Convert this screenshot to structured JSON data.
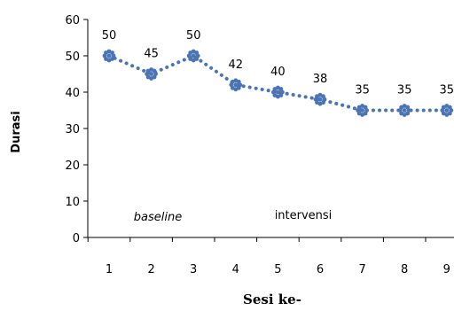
{
  "chart_data": {
    "type": "line",
    "x": [
      1,
      2,
      3,
      4,
      5,
      6,
      7,
      8,
      9
    ],
    "series": [
      {
        "values": [
          50,
          45,
          50,
          42,
          40,
          38,
          35,
          35,
          35
        ]
      }
    ],
    "data_labels": [
      "50",
      "45",
      "50",
      "42",
      "40",
      "38",
      "35",
      "35",
      "35"
    ],
    "xlabel": "Sesi ke-",
    "ylabel": "Durasi",
    "ylim": [
      0,
      60
    ],
    "yticks": [
      0,
      10,
      20,
      30,
      40,
      50,
      60
    ],
    "xtick_labels": [
      "1",
      "2",
      "3",
      "4",
      "5",
      "6",
      "7",
      "8",
      "9"
    ],
    "ytick_labels": [
      "0",
      "10",
      "20",
      "30",
      "40",
      "50",
      "60"
    ],
    "phase_labels": {
      "baseline": "baseline",
      "intervensi": "intervensi"
    },
    "grid": false,
    "line_style": "dotted",
    "color": "#4a74b4"
  }
}
